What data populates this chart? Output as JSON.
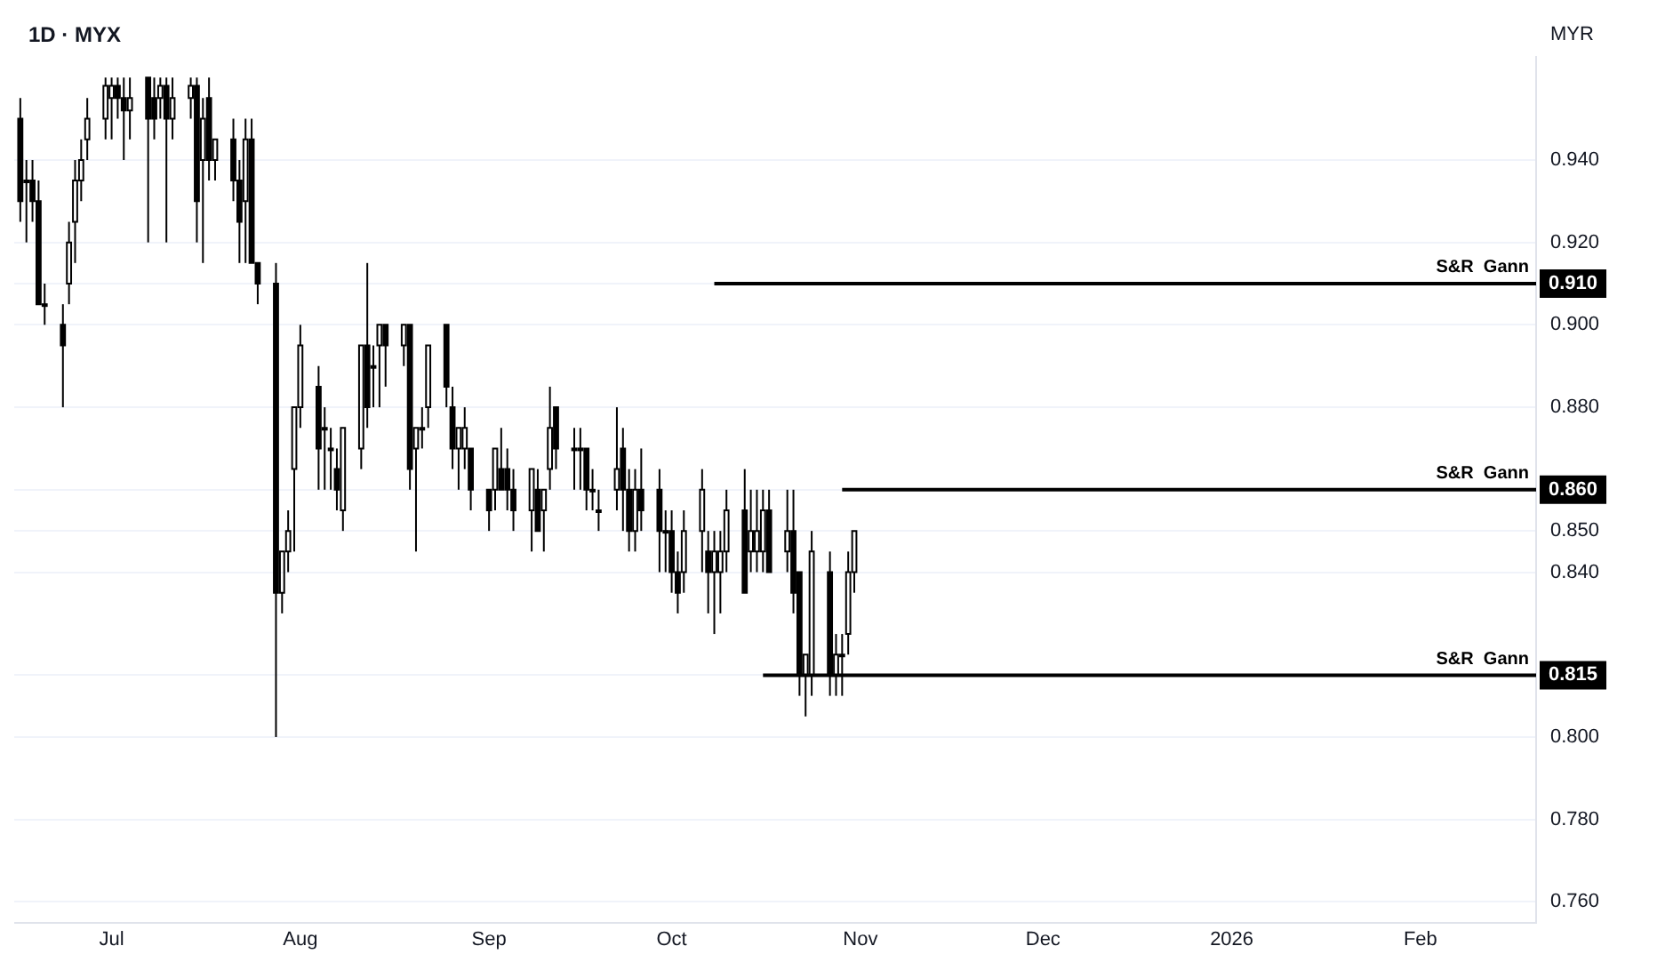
{
  "chart_data": {
    "type": "candlestick",
    "title": "1D · MYX",
    "ylabel": "MYR",
    "color": "#000000",
    "grid": "y",
    "x": [
      "2025-06-16",
      "2025-06-17",
      "2025-06-18",
      "2025-06-19",
      "2025-06-20",
      "2025-06-23",
      "2025-06-24",
      "2025-06-25",
      "2025-06-26",
      "2025-06-27",
      "2025-06-30",
      "2025-07-01",
      "2025-07-02",
      "2025-07-03",
      "2025-07-04",
      "2025-07-07",
      "2025-07-08",
      "2025-07-09",
      "2025-07-10",
      "2025-07-11",
      "2025-07-14",
      "2025-07-15",
      "2025-07-16",
      "2025-07-17",
      "2025-07-18",
      "2025-07-21",
      "2025-07-22",
      "2025-07-23",
      "2025-07-24",
      "2025-07-25",
      "2025-07-28",
      "2025-07-29",
      "2025-07-30",
      "2025-07-31",
      "2025-08-01",
      "2025-08-04",
      "2025-08-05",
      "2025-08-06",
      "2025-08-07",
      "2025-08-08",
      "2025-08-11",
      "2025-08-12",
      "2025-08-13",
      "2025-08-14",
      "2025-08-15",
      "2025-08-18",
      "2025-08-19",
      "2025-08-20",
      "2025-08-21",
      "2025-08-22",
      "2025-08-25",
      "2025-08-26",
      "2025-08-27",
      "2025-08-28",
      "2025-08-29",
      "2025-09-01",
      "2025-09-02",
      "2025-09-03",
      "2025-09-04",
      "2025-09-05",
      "2025-09-08",
      "2025-09-09",
      "2025-09-10",
      "2025-09-11",
      "2025-09-12",
      "2025-09-15",
      "2025-09-16",
      "2025-09-17",
      "2025-09-18",
      "2025-09-19",
      "2025-09-22",
      "2025-09-23",
      "2025-09-24",
      "2025-09-25",
      "2025-09-26",
      "2025-09-29",
      "2025-09-30",
      "2025-10-01",
      "2025-10-02",
      "2025-10-03",
      "2025-10-06",
      "2025-10-07",
      "2025-10-08",
      "2025-10-09",
      "2025-10-10",
      "2025-10-13",
      "2025-10-14",
      "2025-10-15",
      "2025-10-16",
      "2025-10-17",
      "2025-10-20",
      "2025-10-21",
      "2025-10-22",
      "2025-10-23",
      "2025-10-24",
      "2025-10-27",
      "2025-10-28",
      "2025-10-29",
      "2025-10-30",
      "2025-10-31"
    ],
    "ohlc": [
      [
        0.95,
        0.955,
        0.925,
        0.93
      ],
      [
        0.935,
        0.94,
        0.92,
        0.935
      ],
      [
        0.935,
        0.94,
        0.925,
        0.93
      ],
      [
        0.93,
        0.935,
        0.905,
        0.905
      ],
      [
        0.905,
        0.91,
        0.9,
        0.905
      ],
      [
        0.9,
        0.905,
        0.88,
        0.895
      ],
      [
        0.91,
        0.925,
        0.905,
        0.92
      ],
      [
        0.925,
        0.94,
        0.915,
        0.935
      ],
      [
        0.935,
        0.945,
        0.93,
        0.94
      ],
      [
        0.945,
        0.955,
        0.94,
        0.95
      ],
      [
        0.95,
        0.96,
        0.945,
        0.958
      ],
      [
        0.955,
        0.96,
        0.945,
        0.958
      ],
      [
        0.958,
        0.96,
        0.95,
        0.955
      ],
      [
        0.955,
        0.96,
        0.94,
        0.952
      ],
      [
        0.952,
        0.96,
        0.945,
        0.955
      ],
      [
        0.96,
        0.96,
        0.92,
        0.95
      ],
      [
        0.955,
        0.96,
        0.945,
        0.95
      ],
      [
        0.955,
        0.96,
        0.95,
        0.958
      ],
      [
        0.958,
        0.96,
        0.92,
        0.95
      ],
      [
        0.95,
        0.96,
        0.945,
        0.955
      ],
      [
        0.955,
        0.96,
        0.95,
        0.958
      ],
      [
        0.958,
        0.96,
        0.92,
        0.93
      ],
      [
        0.94,
        0.955,
        0.915,
        0.95
      ],
      [
        0.955,
        0.96,
        0.935,
        0.94
      ],
      [
        0.94,
        0.945,
        0.935,
        0.945
      ],
      [
        0.945,
        0.95,
        0.93,
        0.935
      ],
      [
        0.935,
        0.94,
        0.915,
        0.925
      ],
      [
        0.93,
        0.95,
        0.915,
        0.945
      ],
      [
        0.945,
        0.95,
        0.915,
        0.915
      ],
      [
        0.915,
        0.915,
        0.905,
        0.91
      ],
      [
        0.91,
        0.915,
        0.8,
        0.835
      ],
      [
        0.835,
        0.845,
        0.83,
        0.845
      ],
      [
        0.845,
        0.855,
        0.84,
        0.85
      ],
      [
        0.865,
        0.88,
        0.845,
        0.88
      ],
      [
        0.88,
        0.9,
        0.875,
        0.895
      ],
      [
        0.885,
        0.89,
        0.86,
        0.87
      ],
      [
        0.875,
        0.88,
        0.86,
        0.875
      ],
      [
        0.87,
        0.875,
        0.86,
        0.87
      ],
      [
        0.865,
        0.87,
        0.855,
        0.86
      ],
      [
        0.855,
        0.875,
        0.85,
        0.875
      ],
      [
        0.87,
        0.895,
        0.865,
        0.895
      ],
      [
        0.895,
        0.915,
        0.875,
        0.88
      ],
      [
        0.89,
        0.895,
        0.88,
        0.89
      ],
      [
        0.895,
        0.9,
        0.88,
        0.9
      ],
      [
        0.9,
        0.9,
        0.885,
        0.895
      ],
      [
        0.895,
        0.9,
        0.89,
        0.9
      ],
      [
        0.9,
        0.9,
        0.86,
        0.865
      ],
      [
        0.87,
        0.875,
        0.845,
        0.875
      ],
      [
        0.875,
        0.88,
        0.87,
        0.875
      ],
      [
        0.88,
        0.895,
        0.875,
        0.895
      ],
      [
        0.9,
        0.9,
        0.88,
        0.885
      ],
      [
        0.88,
        0.885,
        0.865,
        0.87
      ],
      [
        0.87,
        0.875,
        0.86,
        0.875
      ],
      [
        0.87,
        0.88,
        0.865,
        0.875
      ],
      [
        0.87,
        0.87,
        0.855,
        0.86
      ],
      [
        0.86,
        0.86,
        0.85,
        0.855
      ],
      [
        0.86,
        0.87,
        0.855,
        0.87
      ],
      [
        0.865,
        0.875,
        0.86,
        0.86
      ],
      [
        0.865,
        0.87,
        0.855,
        0.86
      ],
      [
        0.86,
        0.865,
        0.85,
        0.855
      ],
      [
        0.855,
        0.865,
        0.845,
        0.865
      ],
      [
        0.86,
        0.865,
        0.85,
        0.85
      ],
      [
        0.855,
        0.86,
        0.845,
        0.86
      ],
      [
        0.865,
        0.885,
        0.86,
        0.875
      ],
      [
        0.88,
        0.88,
        0.865,
        0.87
      ],
      [
        0.87,
        0.875,
        0.86,
        0.87
      ],
      [
        0.87,
        0.875,
        0.86,
        0.87
      ],
      [
        0.87,
        0.87,
        0.855,
        0.86
      ],
      [
        0.86,
        0.865,
        0.855,
        0.86
      ],
      [
        0.855,
        0.86,
        0.85,
        0.855
      ],
      [
        0.86,
        0.88,
        0.855,
        0.865
      ],
      [
        0.87,
        0.875,
        0.85,
        0.86
      ],
      [
        0.86,
        0.865,
        0.845,
        0.85
      ],
      [
        0.85,
        0.865,
        0.845,
        0.86
      ],
      [
        0.86,
        0.87,
        0.85,
        0.855
      ],
      [
        0.86,
        0.865,
        0.84,
        0.85
      ],
      [
        0.85,
        0.855,
        0.84,
        0.85
      ],
      [
        0.85,
        0.855,
        0.835,
        0.84
      ],
      [
        0.84,
        0.845,
        0.83,
        0.835
      ],
      [
        0.84,
        0.855,
        0.835,
        0.85
      ],
      [
        0.85,
        0.865,
        0.84,
        0.86
      ],
      [
        0.845,
        0.85,
        0.83,
        0.84
      ],
      [
        0.84,
        0.85,
        0.825,
        0.845
      ],
      [
        0.84,
        0.85,
        0.83,
        0.845
      ],
      [
        0.845,
        0.86,
        0.84,
        0.855
      ],
      [
        0.855,
        0.865,
        0.835,
        0.835
      ],
      [
        0.845,
        0.86,
        0.84,
        0.85
      ],
      [
        0.845,
        0.86,
        0.84,
        0.85
      ],
      [
        0.845,
        0.86,
        0.84,
        0.855
      ],
      [
        0.855,
        0.86,
        0.84,
        0.84
      ],
      [
        0.845,
        0.86,
        0.84,
        0.85
      ],
      [
        0.85,
        0.86,
        0.83,
        0.835
      ],
      [
        0.84,
        0.84,
        0.81,
        0.815
      ],
      [
        0.815,
        0.82,
        0.805,
        0.82
      ],
      [
        0.815,
        0.85,
        0.81,
        0.845
      ],
      [
        0.84,
        0.845,
        0.81,
        0.815
      ],
      [
        0.815,
        0.825,
        0.81,
        0.82
      ],
      [
        0.82,
        0.825,
        0.81,
        0.82
      ],
      [
        0.825,
        0.845,
        0.82,
        0.84
      ],
      [
        0.84,
        0.85,
        0.835,
        0.85
      ]
    ],
    "series": [
      {
        "type": "line",
        "name": "S&R  Gann",
        "color": "#000000",
        "x": [
          "2025-10-08",
          "2026-02-20"
        ],
        "values": [
          0.91,
          0.91
        ]
      },
      {
        "type": "line",
        "name": "S&R  Gann",
        "color": "#000000",
        "x": [
          "2025-10-29",
          "2026-02-20"
        ],
        "values": [
          0.86,
          0.86
        ]
      },
      {
        "type": "line",
        "name": "S&R  Gann",
        "color": "#000000",
        "x": [
          "2025-10-16",
          "2026-02-20"
        ],
        "values": [
          0.815,
          0.815
        ]
      }
    ],
    "xlim": [
      "2025-06-15",
      "2026-02-20"
    ],
    "xticks": [
      {
        "value": "2025-07-01",
        "label": "Jul"
      },
      {
        "value": "2025-08-01",
        "label": "Aug"
      },
      {
        "value": "2025-09-01",
        "label": "Sep"
      },
      {
        "value": "2025-10-01",
        "label": "Oct"
      },
      {
        "value": "2025-11-01",
        "label": "Nov"
      },
      {
        "value": "2025-12-01",
        "label": "Dec"
      },
      {
        "value": "2026-01-01",
        "label": "2026"
      },
      {
        "value": "2026-02-01",
        "label": "Feb"
      }
    ],
    "ylim": [
      0.755,
      0.965
    ],
    "yticks": [
      {
        "value": 0.76,
        "label": "0.760"
      },
      {
        "value": 0.78,
        "label": "0.780"
      },
      {
        "value": 0.8,
        "label": "0.800"
      },
      {
        "value": 0.815,
        "label": "0.815"
      },
      {
        "value": 0.84,
        "label": "0.840"
      },
      {
        "value": 0.85,
        "label": "0.850"
      },
      {
        "value": 0.86,
        "label": "0.860"
      },
      {
        "value": 0.88,
        "label": "0.880"
      },
      {
        "value": 0.9,
        "label": "0.900"
      },
      {
        "value": 0.91,
        "label": "0.910"
      },
      {
        "value": 0.92,
        "label": "0.920"
      },
      {
        "value": 0.94,
        "label": "0.940"
      }
    ]
  }
}
